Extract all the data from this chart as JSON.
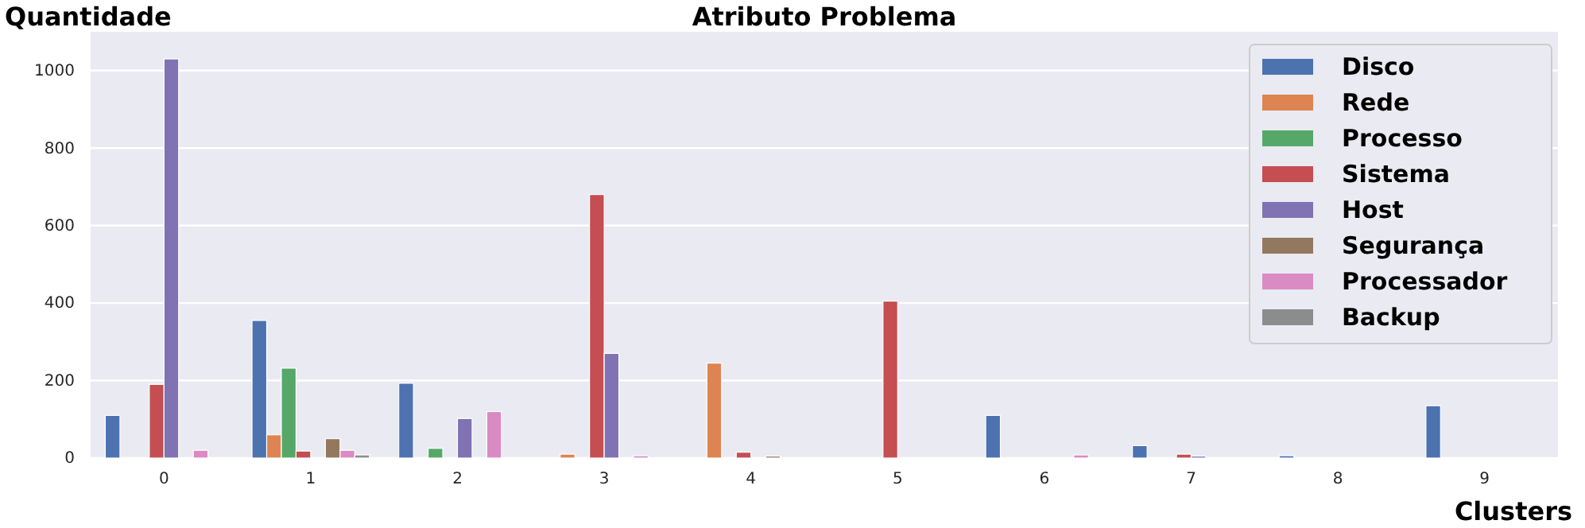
{
  "chart_data": {
    "type": "bar",
    "title": "Atributo Problema",
    "xlabel": "Clusters",
    "ylabel": "Quantidade",
    "categories": [
      "0",
      "1",
      "2",
      "3",
      "4",
      "5",
      "6",
      "7",
      "8",
      "9"
    ],
    "series": [
      {
        "name": "Disco",
        "color": "#4c72b0",
        "values": [
          110,
          355,
          193,
          0,
          0,
          0,
          110,
          32,
          6,
          135
        ]
      },
      {
        "name": "Rede",
        "color": "#dd8452",
        "values": [
          0,
          60,
          0,
          10,
          245,
          0,
          0,
          0,
          0,
          0
        ]
      },
      {
        "name": "Processo",
        "color": "#55a868",
        "values": [
          0,
          232,
          25,
          0,
          0,
          0,
          0,
          0,
          0,
          0
        ]
      },
      {
        "name": "Sistema",
        "color": "#c44e52",
        "values": [
          190,
          18,
          0,
          680,
          15,
          405,
          0,
          10,
          0,
          0
        ]
      },
      {
        "name": "Host",
        "color": "#8172b3",
        "values": [
          1030,
          0,
          102,
          270,
          0,
          0,
          0,
          5,
          0,
          0
        ]
      },
      {
        "name": "Segurança",
        "color": "#937860",
        "values": [
          0,
          50,
          0,
          0,
          5,
          0,
          0,
          0,
          0,
          0
        ]
      },
      {
        "name": "Processador",
        "color": "#da8bc3",
        "values": [
          20,
          20,
          120,
          6,
          0,
          0,
          8,
          0,
          0,
          0
        ]
      },
      {
        "name": "Backup",
        "color": "#8c8c8c",
        "values": [
          0,
          8,
          0,
          0,
          0,
          0,
          0,
          0,
          0,
          0
        ]
      }
    ],
    "ylim": [
      0,
      1100
    ],
    "yticks": [
      0,
      200,
      400,
      600,
      800,
      1000
    ],
    "grid": "y",
    "legend": "top right"
  }
}
